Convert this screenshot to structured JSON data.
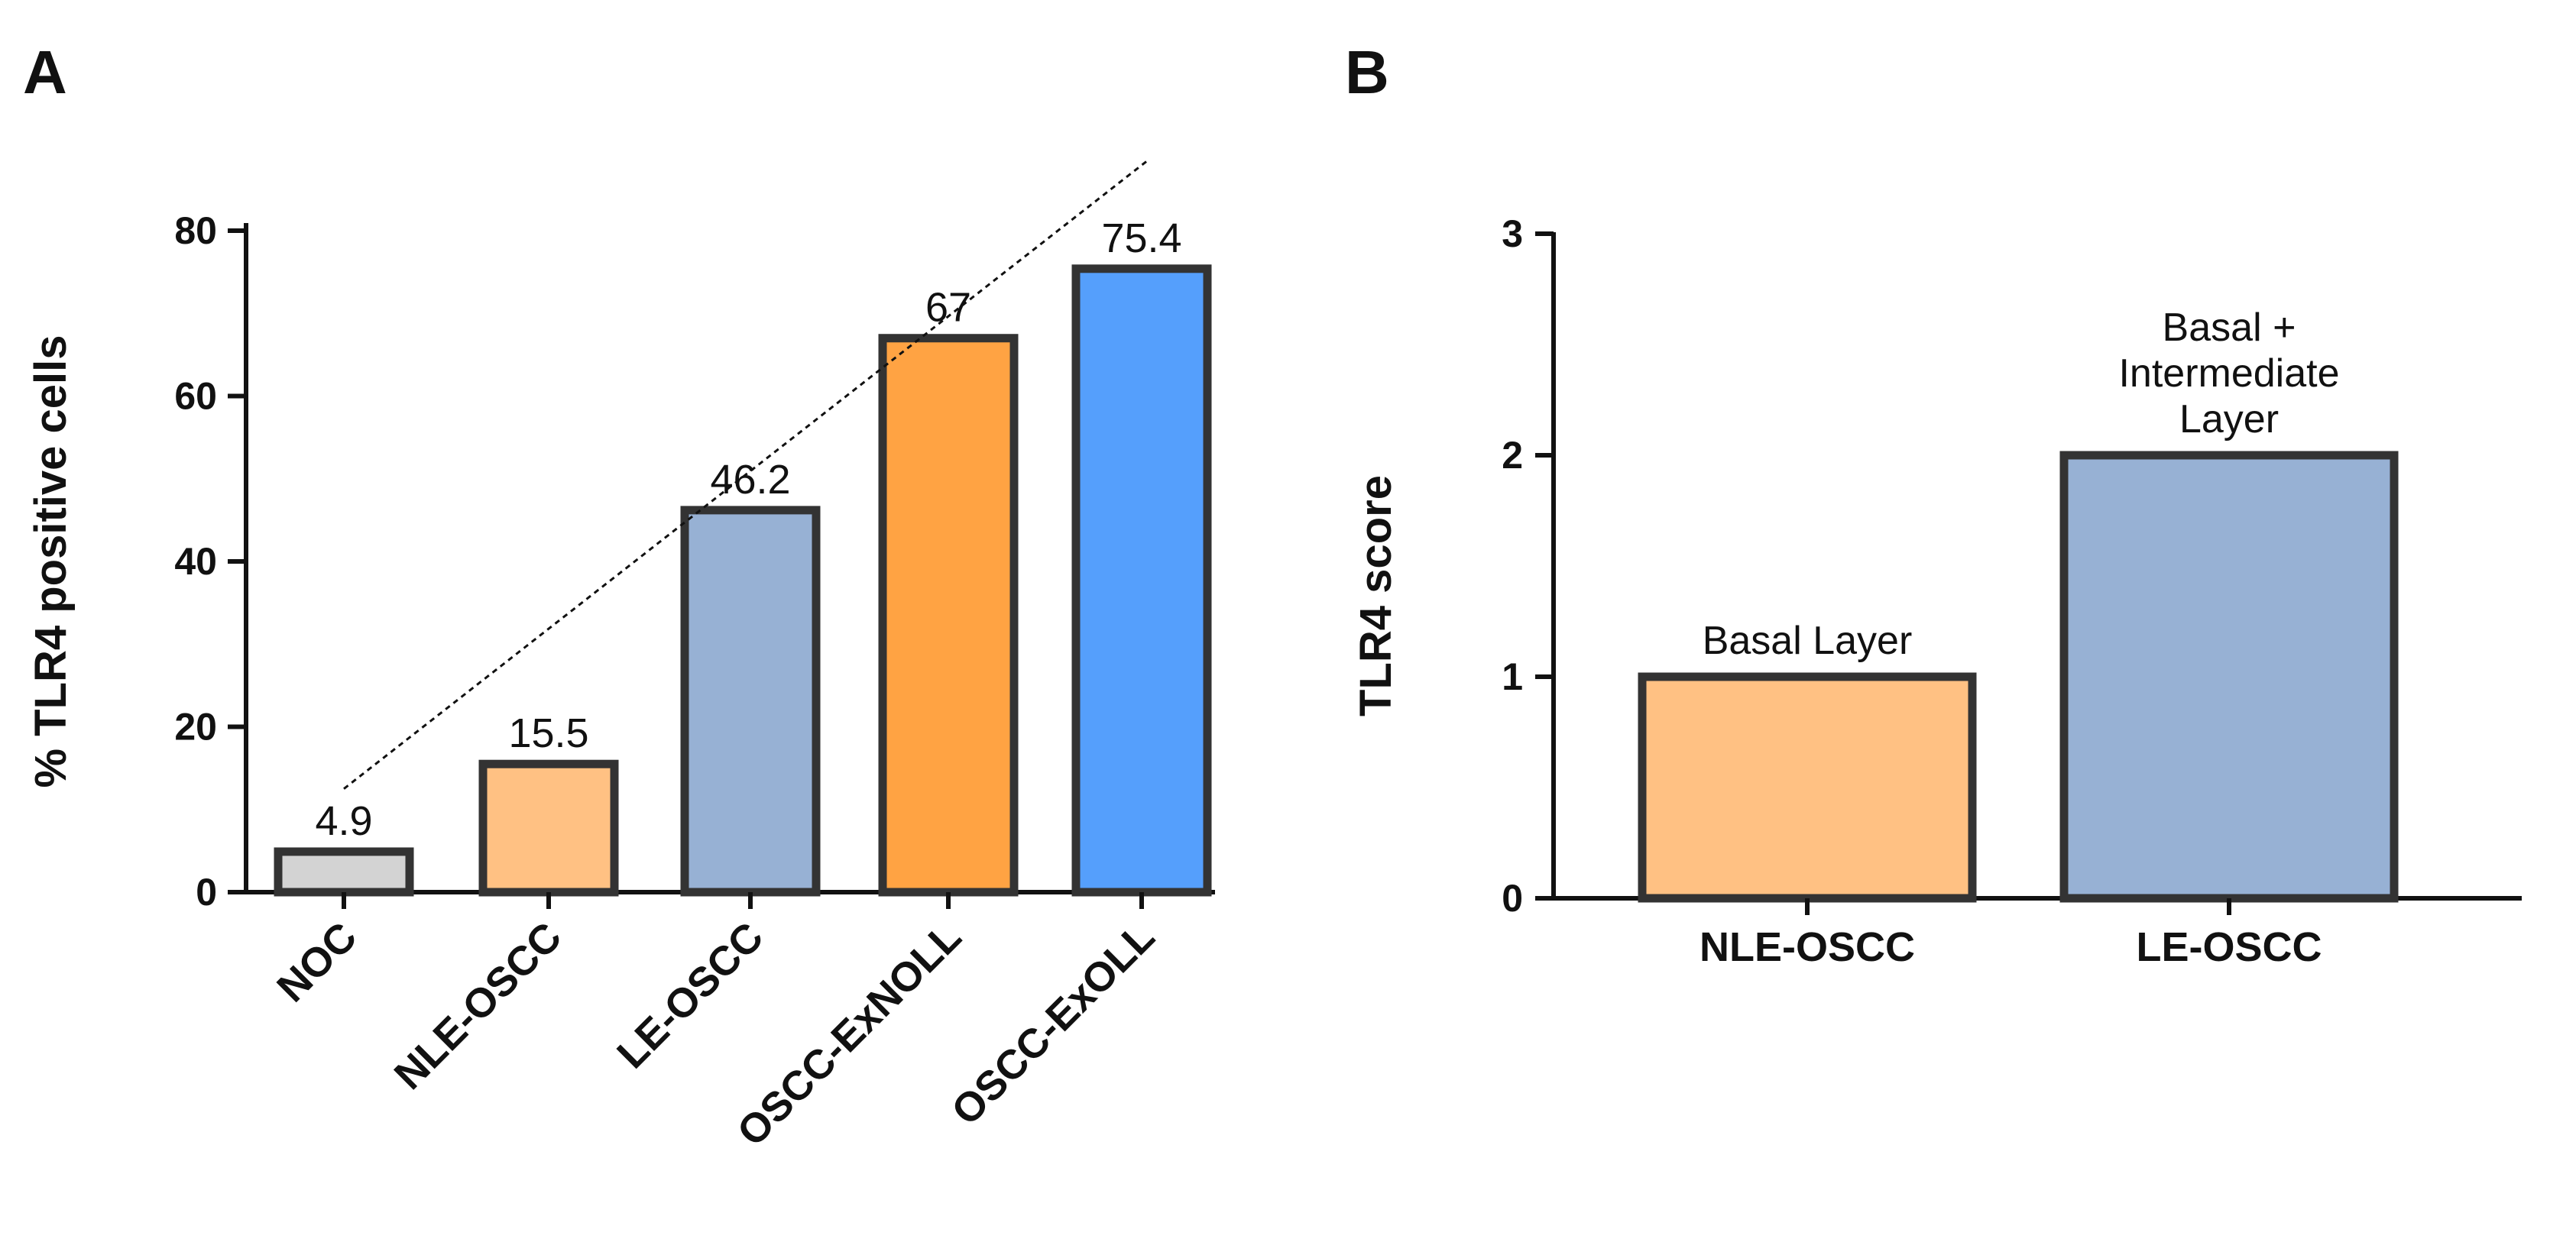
{
  "chart_data": [
    {
      "panel": "A",
      "type": "bar",
      "title": "",
      "xlabel": "",
      "ylabel": "% TLR4 positive cells",
      "ylim": [
        0,
        80
      ],
      "yticks": [
        0,
        20,
        40,
        60,
        80
      ],
      "categories": [
        "NOC",
        "NLE-OSCC",
        "LE-OSCC",
        "OSCC-ExNOLL",
        "OSCC-ExOLL"
      ],
      "values": [
        4.9,
        15.5,
        46.2,
        67,
        75.4
      ],
      "value_labels": [
        "4.9",
        "15.5",
        "46.2",
        "67",
        "75.4"
      ],
      "colors": [
        "#d3d3d3",
        "#ffc183",
        "#97b1d4",
        "#ffa343",
        "#559ffc"
      ],
      "trendline": {
        "style": "dotted",
        "from_value": 12.5,
        "to_value": 88.5
      }
    },
    {
      "panel": "B",
      "type": "bar",
      "title": "",
      "xlabel": "",
      "ylabel": "TLR4 score",
      "ylim": [
        0,
        3
      ],
      "yticks": [
        0,
        1,
        2,
        3
      ],
      "categories": [
        "NLE-OSCC",
        "LE-OSCC"
      ],
      "values": [
        1,
        2
      ],
      "annotations": [
        [
          "Basal Layer"
        ],
        [
          "Basal +",
          "Intermediate",
          "Layer"
        ]
      ],
      "colors": [
        "#ffc183",
        "#97b1d4"
      ]
    }
  ]
}
